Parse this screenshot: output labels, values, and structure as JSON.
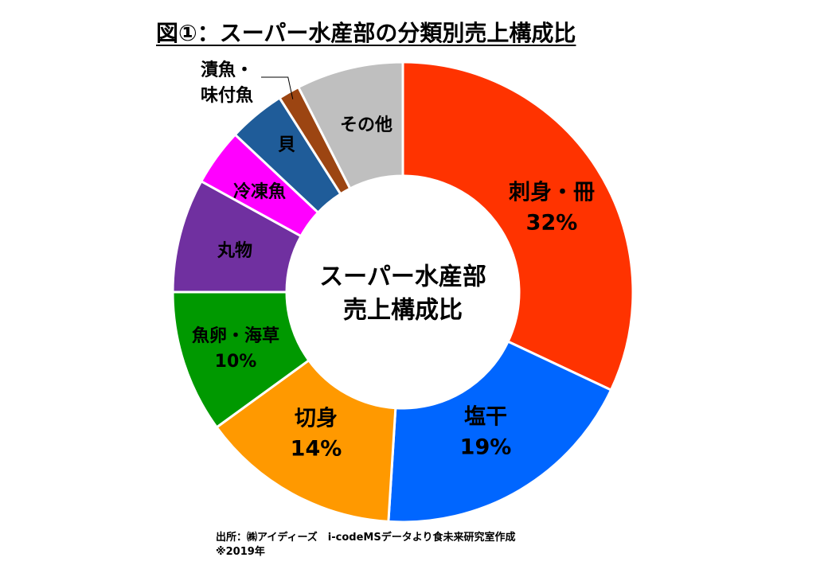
{
  "chart_data": {
    "type": "pie",
    "title": "図①：スーパー水産部の分類別売上構成比",
    "center_label": [
      "スーパー水産部",
      "売上構成比"
    ],
    "donut": true,
    "slices": [
      {
        "label": "刺身・冊",
        "value": 32,
        "value_label": "32%",
        "color": "#ff3300"
      },
      {
        "label": "塩干",
        "value": 19,
        "value_label": "19%",
        "color": "#0066ff"
      },
      {
        "label": "切身",
        "value": 14,
        "value_label": "14%",
        "color": "#ff9900"
      },
      {
        "label": "魚卵・海草",
        "value": 10,
        "value_label": "10%",
        "color": "#009900"
      },
      {
        "label": "丸物",
        "value": 8,
        "value_label": "",
        "color": "#7030a0"
      },
      {
        "label": "冷凍魚",
        "value": 4,
        "value_label": "",
        "color": "#ff00ff"
      },
      {
        "label": "貝",
        "value": 4,
        "value_label": "",
        "color": "#1f5c99"
      },
      {
        "label": "漬魚・味付魚",
        "value": 1.5,
        "value_label": "",
        "color": "#9c4512"
      },
      {
        "label": "その他",
        "value": 7.5,
        "value_label": "",
        "color": "#bfbfbf"
      }
    ]
  },
  "footer": {
    "source": "出所：㈱アイディーズ　i-codeMSデータより食未来研究室作成",
    "note": "※2019年"
  }
}
